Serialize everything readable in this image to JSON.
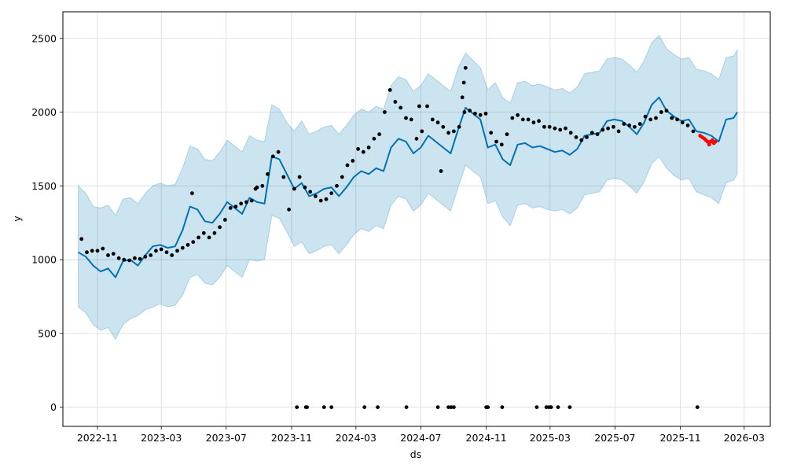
{
  "chart_data": {
    "type": "line",
    "title": "",
    "xlabel": "ds",
    "ylabel": "y",
    "grid": true,
    "xlim": [
      "2022-08-28",
      "2026-04-19"
    ],
    "ylim": [
      -130,
      2680
    ],
    "x_ticks": [
      "2022-11",
      "2023-03",
      "2023-07",
      "2023-11",
      "2024-03",
      "2024-07",
      "2024-11",
      "2025-03",
      "2025-07",
      "2025-11",
      "2026-03"
    ],
    "y_ticks": [
      0,
      500,
      1000,
      1500,
      2000,
      2500
    ],
    "colors": {
      "forecast": "#0072B2",
      "interval": "#0072B2",
      "actual": "#000000",
      "recent": "#ff0000",
      "grid": "#d9d9d9"
    },
    "series": [
      {
        "kind": "forecast",
        "style": "line",
        "x": [
          "2022-09-26",
          "2022-10-10",
          "2022-10-24",
          "2022-11-07",
          "2022-11-21",
          "2022-12-05",
          "2022-12-19",
          "2023-01-02",
          "2023-01-16",
          "2023-01-30",
          "2023-02-13",
          "2023-02-27",
          "2023-03-13",
          "2023-03-27",
          "2023-04-10",
          "2023-04-24",
          "2023-05-08",
          "2023-05-22",
          "2023-06-05",
          "2023-06-19",
          "2023-07-03",
          "2023-07-17",
          "2023-07-31",
          "2023-08-14",
          "2023-08-28",
          "2023-09-11",
          "2023-09-25",
          "2023-10-09",
          "2023-10-23",
          "2023-11-06",
          "2023-11-20",
          "2023-12-04",
          "2023-12-18",
          "2024-01-01",
          "2024-01-15",
          "2024-01-29",
          "2024-02-12",
          "2024-02-26",
          "2024-03-11",
          "2024-03-25",
          "2024-04-08",
          "2024-04-22",
          "2024-05-06",
          "2024-05-20",
          "2024-06-03",
          "2024-06-17",
          "2024-07-01",
          "2024-07-15",
          "2024-07-29",
          "2024-08-12",
          "2024-08-26",
          "2024-09-09",
          "2024-09-23",
          "2024-10-07",
          "2024-10-21",
          "2024-11-04",
          "2024-11-18",
          "2024-12-02",
          "2024-12-16",
          "2024-12-30",
          "2025-01-13",
          "2025-01-27",
          "2025-02-10",
          "2025-02-24",
          "2025-03-10",
          "2025-03-24",
          "2025-04-07",
          "2025-04-21",
          "2025-05-05",
          "2025-05-19",
          "2025-06-02",
          "2025-06-16",
          "2025-06-30",
          "2025-07-14",
          "2025-07-28",
          "2025-08-11",
          "2025-08-25",
          "2025-09-08",
          "2025-09-22",
          "2025-10-06",
          "2025-10-20",
          "2025-11-03",
          "2025-11-17",
          "2025-12-01",
          "2025-12-15",
          "2025-12-29",
          "2026-01-12",
          "2026-01-26",
          "2026-02-09",
          "2026-02-16"
        ],
        "y": [
          1050,
          1020,
          960,
          920,
          940,
          880,
          990,
          1000,
          960,
          1030,
          1090,
          1100,
          1080,
          1090,
          1200,
          1360,
          1340,
          1260,
          1250,
          1310,
          1390,
          1350,
          1310,
          1420,
          1390,
          1380,
          1700,
          1680,
          1580,
          1480,
          1520,
          1430,
          1450,
          1480,
          1490,
          1430,
          1490,
          1560,
          1600,
          1580,
          1620,
          1600,
          1760,
          1820,
          1800,
          1720,
          1760,
          1840,
          1800,
          1760,
          1720,
          1880,
          2030,
          1990,
          1950,
          1760,
          1780,
          1680,
          1640,
          1780,
          1790,
          1760,
          1770,
          1750,
          1730,
          1740,
          1710,
          1750,
          1840,
          1850,
          1860,
          1940,
          1950,
          1940,
          1900,
          1850,
          1930,
          2050,
          2100,
          2010,
          1970,
          1940,
          1950,
          1870,
          1860,
          1840,
          1800,
          1950,
          1960,
          2000
        ]
      },
      {
        "kind": "interval-upper",
        "x": [
          "2022-09-26",
          "2022-10-10",
          "2022-10-24",
          "2022-11-07",
          "2022-11-21",
          "2022-12-05",
          "2022-12-19",
          "2023-01-02",
          "2023-01-16",
          "2023-01-30",
          "2023-02-13",
          "2023-02-27",
          "2023-03-13",
          "2023-03-27",
          "2023-04-10",
          "2023-04-24",
          "2023-05-08",
          "2023-05-22",
          "2023-06-05",
          "2023-06-19",
          "2023-07-03",
          "2023-07-17",
          "2023-07-31",
          "2023-08-14",
          "2023-08-28",
          "2023-09-11",
          "2023-09-25",
          "2023-10-09",
          "2023-10-23",
          "2023-11-06",
          "2023-11-20",
          "2023-12-04",
          "2023-12-18",
          "2024-01-01",
          "2024-01-15",
          "2024-01-29",
          "2024-02-12",
          "2024-02-26",
          "2024-03-11",
          "2024-03-25",
          "2024-04-08",
          "2024-04-22",
          "2024-05-06",
          "2024-05-20",
          "2024-06-03",
          "2024-06-17",
          "2024-07-01",
          "2024-07-15",
          "2024-07-29",
          "2024-08-12",
          "2024-08-26",
          "2024-09-09",
          "2024-09-23",
          "2024-10-07",
          "2024-10-21",
          "2024-11-04",
          "2024-11-18",
          "2024-12-02",
          "2024-12-16",
          "2024-12-30",
          "2025-01-13",
          "2025-01-27",
          "2025-02-10",
          "2025-02-24",
          "2025-03-10",
          "2025-03-24",
          "2025-04-07",
          "2025-04-21",
          "2025-05-05",
          "2025-05-19",
          "2025-06-02",
          "2025-06-16",
          "2025-06-30",
          "2025-07-14",
          "2025-07-28",
          "2025-08-11",
          "2025-08-25",
          "2025-09-08",
          "2025-09-22",
          "2025-10-06",
          "2025-10-20",
          "2025-11-03",
          "2025-11-17",
          "2025-12-01",
          "2025-12-15",
          "2025-12-29",
          "2026-01-12",
          "2026-01-26",
          "2026-02-09",
          "2026-02-16"
        ],
        "y": [
          1500,
          1450,
          1360,
          1350,
          1370,
          1300,
          1410,
          1420,
          1380,
          1450,
          1500,
          1520,
          1500,
          1510,
          1620,
          1770,
          1750,
          1680,
          1670,
          1730,
          1810,
          1770,
          1730,
          1840,
          1810,
          1800,
          2050,
          2020,
          1930,
          1870,
          1940,
          1850,
          1870,
          1900,
          1910,
          1850,
          1910,
          1980,
          2020,
          2000,
          2040,
          2020,
          2180,
          2240,
          2220,
          2140,
          2180,
          2260,
          2220,
          2180,
          2140,
          2300,
          2400,
          2350,
          2300,
          2150,
          2200,
          2100,
          2060,
          2200,
          2210,
          2180,
          2190,
          2170,
          2150,
          2160,
          2130,
          2170,
          2260,
          2270,
          2280,
          2360,
          2370,
          2360,
          2320,
          2270,
          2350,
          2470,
          2520,
          2430,
          2390,
          2360,
          2370,
          2290,
          2280,
          2260,
          2220,
          2370,
          2380,
          2420
        ]
      },
      {
        "kind": "interval-lower",
        "x": [
          "2022-09-26",
          "2022-10-10",
          "2022-10-24",
          "2022-11-07",
          "2022-11-21",
          "2022-12-05",
          "2022-12-19",
          "2023-01-02",
          "2023-01-16",
          "2023-01-30",
          "2023-02-13",
          "2023-02-27",
          "2023-03-13",
          "2023-03-27",
          "2023-04-10",
          "2023-04-24",
          "2023-05-08",
          "2023-05-22",
          "2023-06-05",
          "2023-06-19",
          "2023-07-03",
          "2023-07-17",
          "2023-07-31",
          "2023-08-14",
          "2023-08-28",
          "2023-09-11",
          "2023-09-25",
          "2023-10-09",
          "2023-10-23",
          "2023-11-06",
          "2023-11-20",
          "2023-12-04",
          "2023-12-18",
          "2024-01-01",
          "2024-01-15",
          "2024-01-29",
          "2024-02-12",
          "2024-02-26",
          "2024-03-11",
          "2024-03-25",
          "2024-04-08",
          "2024-04-22",
          "2024-05-06",
          "2024-05-20",
          "2024-06-03",
          "2024-06-17",
          "2024-07-01",
          "2024-07-15",
          "2024-07-29",
          "2024-08-12",
          "2024-08-26",
          "2024-09-09",
          "2024-09-23",
          "2024-10-07",
          "2024-10-21",
          "2024-11-04",
          "2024-11-18",
          "2024-12-02",
          "2024-12-16",
          "2024-12-30",
          "2025-01-13",
          "2025-01-27",
          "2025-02-10",
          "2025-02-24",
          "2025-03-10",
          "2025-03-24",
          "2025-04-07",
          "2025-04-21",
          "2025-05-05",
          "2025-05-19",
          "2025-06-02",
          "2025-06-16",
          "2025-06-30",
          "2025-07-14",
          "2025-07-28",
          "2025-08-11",
          "2025-08-25",
          "2025-09-08",
          "2025-09-22",
          "2025-10-06",
          "2025-10-20",
          "2025-11-03",
          "2025-11-17",
          "2025-12-01",
          "2025-12-15",
          "2025-12-29",
          "2026-01-12",
          "2026-01-26",
          "2026-02-09",
          "2026-02-16"
        ],
        "y": [
          680,
          640,
          560,
          520,
          540,
          460,
          560,
          600,
          620,
          660,
          680,
          700,
          680,
          690,
          760,
          880,
          900,
          840,
          830,
          880,
          960,
          920,
          880,
          1000,
          990,
          1000,
          1300,
          1280,
          1190,
          1090,
          1120,
          1040,
          1060,
          1090,
          1100,
          1040,
          1100,
          1170,
          1210,
          1190,
          1230,
          1210,
          1370,
          1430,
          1410,
          1330,
          1370,
          1450,
          1410,
          1370,
          1330,
          1490,
          1640,
          1600,
          1560,
          1380,
          1400,
          1290,
          1230,
          1370,
          1380,
          1350,
          1360,
          1340,
          1330,
          1340,
          1310,
          1350,
          1440,
          1450,
          1460,
          1540,
          1550,
          1540,
          1500,
          1450,
          1530,
          1650,
          1700,
          1620,
          1570,
          1540,
          1550,
          1460,
          1440,
          1420,
          1380,
          1520,
          1540,
          1580
        ]
      },
      {
        "kind": "actual",
        "style": "scatter",
        "x": [
          "2022-10-02",
          "2022-10-12",
          "2022-10-22",
          "2022-11-01",
          "2022-11-11",
          "2022-11-21",
          "2022-12-01",
          "2022-12-11",
          "2022-12-21",
          "2022-12-31",
          "2023-01-10",
          "2023-01-20",
          "2023-01-30",
          "2023-02-09",
          "2023-02-19",
          "2023-03-01",
          "2023-03-11",
          "2023-03-21",
          "2023-03-31",
          "2023-04-10",
          "2023-04-20",
          "2023-04-30",
          "2023-05-10",
          "2023-05-20",
          "2023-05-30",
          "2023-06-09",
          "2023-06-19",
          "2023-06-29",
          "2023-07-09",
          "2023-07-19",
          "2023-07-29",
          "2023-08-08",
          "2023-08-18",
          "2023-08-28",
          "2023-09-07",
          "2023-09-17",
          "2023-09-27",
          "2023-10-07",
          "2023-10-17",
          "2023-10-27",
          "2023-11-06",
          "2023-11-16",
          "2023-11-26",
          "2023-12-06",
          "2023-12-16",
          "2023-12-26",
          "2024-01-05",
          "2024-01-15",
          "2024-01-25",
          "2024-02-04",
          "2024-02-14",
          "2024-02-24",
          "2024-03-05",
          "2024-03-15",
          "2024-03-25",
          "2024-04-04",
          "2024-04-14",
          "2024-04-24",
          "2024-05-04",
          "2024-05-14",
          "2024-05-24",
          "2024-06-03",
          "2024-06-13",
          "2024-06-23",
          "2024-07-03",
          "2024-07-13",
          "2024-07-23",
          "2024-08-02",
          "2024-08-12",
          "2024-08-22",
          "2024-09-01",
          "2024-09-11",
          "2024-09-21",
          "2024-10-01",
          "2024-10-11",
          "2024-10-21",
          "2024-10-31",
          "2024-11-10",
          "2024-11-20",
          "2024-11-30",
          "2024-12-10",
          "2024-12-20",
          "2024-12-30",
          "2025-01-09",
          "2025-01-19",
          "2025-01-29",
          "2025-02-08",
          "2025-02-18",
          "2025-02-28",
          "2025-03-10",
          "2025-03-20",
          "2025-03-30",
          "2025-04-09",
          "2025-04-19",
          "2025-04-29",
          "2025-05-09",
          "2025-05-19",
          "2025-05-29",
          "2025-06-08",
          "2025-06-18",
          "2025-06-28",
          "2025-07-08",
          "2025-07-18",
          "2025-07-28",
          "2025-08-07",
          "2025-08-17",
          "2025-08-27",
          "2025-09-06",
          "2025-09-16",
          "2025-09-26",
          "2025-10-06",
          "2025-10-16",
          "2025-10-26",
          "2025-11-05",
          "2025-11-15",
          "2025-11-25",
          "2023-04-28",
          "2023-08-25",
          "2024-06-28",
          "2024-08-08",
          "2024-09-17",
          "2024-09-20",
          "2024-09-23"
        ],
        "y": [
          1140,
          1050,
          1060,
          1060,
          1075,
          1030,
          1040,
          1010,
          1000,
          995,
          1010,
          1005,
          1020,
          1030,
          1060,
          1070,
          1050,
          1030,
          1060,
          1080,
          1100,
          1120,
          1150,
          1180,
          1150,
          1180,
          1220,
          1270,
          1350,
          1360,
          1380,
          1390,
          1400,
          1490,
          1500,
          1580,
          1700,
          1730,
          1560,
          1340,
          1480,
          1560,
          1490,
          1460,
          1430,
          1400,
          1410,
          1450,
          1500,
          1560,
          1640,
          1670,
          1750,
          1730,
          1760,
          1820,
          1850,
          2000,
          2150,
          2070,
          2030,
          1960,
          1950,
          1820,
          1870,
          2040,
          1950,
          1930,
          1900,
          1860,
          1870,
          1900,
          2000,
          2010,
          1990,
          1980,
          1990,
          1860,
          1800,
          1780,
          1850,
          1960,
          1980,
          1950,
          1950,
          1930,
          1940,
          1900,
          1900,
          1890,
          1880,
          1890,
          1860,
          1830,
          1810,
          1830,
          1860,
          1850,
          1880,
          1890,
          1900,
          1870,
          1920,
          1910,
          1900,
          1920,
          1970,
          1950,
          1960,
          2000,
          2010,
          1960,
          1950,
          1930,
          1910,
          1870,
          1450,
          1480,
          2040,
          1600,
          2100,
          2200,
          2300
        ]
      },
      {
        "kind": "actual-zero",
        "style": "scatter",
        "x": [
          "2023-11-11",
          "2023-11-28",
          "2023-11-30",
          "2024-01-01",
          "2024-01-15",
          "2024-03-17",
          "2024-04-11",
          "2024-06-04",
          "2024-08-02",
          "2024-08-22",
          "2024-08-27",
          "2024-09-01",
          "2024-11-01",
          "2024-11-04",
          "2024-12-01",
          "2025-02-04",
          "2025-02-22",
          "2025-02-27",
          "2025-03-03",
          "2025-03-16",
          "2025-04-07",
          "2025-12-03"
        ],
        "y": [
          0,
          0,
          0,
          0,
          0,
          0,
          0,
          0,
          0,
          0,
          0,
          0,
          0,
          0,
          0,
          0,
          0,
          0,
          0,
          0,
          0,
          0
        ]
      },
      {
        "kind": "recent",
        "style": "scatter",
        "x": [
          "2025-12-08",
          "2025-12-12",
          "2025-12-16",
          "2025-12-19",
          "2025-12-22",
          "2025-12-25",
          "2025-12-28",
          "2025-12-31",
          "2026-01-03",
          "2026-01-06"
        ],
        "y": [
          1840,
          1830,
          1820,
          1810,
          1800,
          1780,
          1800,
          1810,
          1790,
          1800
        ]
      }
    ]
  }
}
